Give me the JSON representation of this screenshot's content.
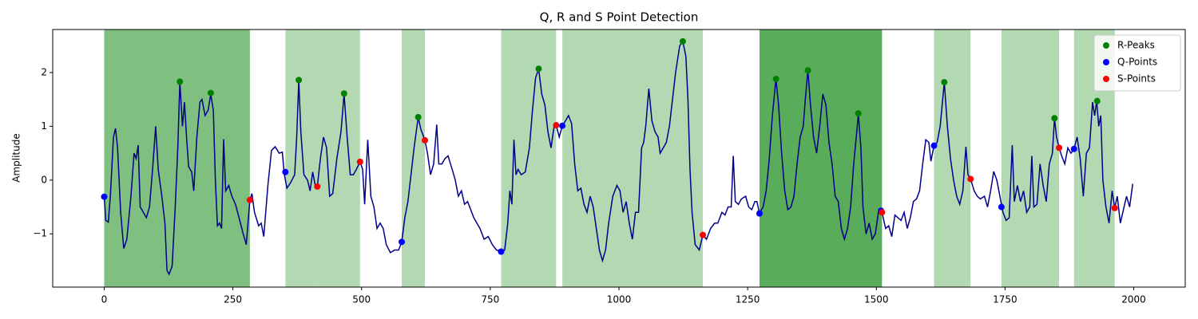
{
  "chart_data": {
    "type": "line",
    "title": "Q, R and S Point Detection",
    "ylabel": "Amplitude",
    "xlim": [
      -100,
      2100
    ],
    "ylim": [
      -1.99,
      2.8
    ],
    "xticks": [
      0,
      250,
      500,
      750,
      1000,
      1250,
      1500,
      1750,
      2000
    ],
    "yticks": [
      {
        "value": -1,
        "label": "−1"
      },
      0,
      1,
      2
    ],
    "legend": "upper right",
    "spans": [
      {
        "start": 0,
        "end": 283,
        "color": "#008000",
        "opacity": 0.5
      },
      {
        "start": 352,
        "end": 414,
        "color": "#008000",
        "opacity": 0.3
      },
      {
        "start": 414,
        "end": 497,
        "color": "#008000",
        "opacity": 0.3
      },
      {
        "start": 578,
        "end": 623,
        "color": "#008000",
        "opacity": 0.3
      },
      {
        "start": 771,
        "end": 878,
        "color": "#008000",
        "opacity": 0.3
      },
      {
        "start": 890,
        "end": 1163,
        "color": "#008000",
        "opacity": 0.3
      },
      {
        "start": 1273,
        "end": 1511,
        "color": "#008000",
        "opacity": 0.65
      },
      {
        "start": 1612,
        "end": 1683,
        "color": "#008000",
        "opacity": 0.3
      },
      {
        "start": 1743,
        "end": 1855,
        "color": "#008000",
        "opacity": 0.3
      },
      {
        "start": 1884,
        "end": 1963,
        "color": "#008000",
        "opacity": 0.3
      }
    ],
    "signal": {
      "color": "#00008b",
      "x": [
        0,
        3,
        8,
        12,
        18,
        22,
        26,
        32,
        38,
        44,
        52,
        58,
        62,
        66,
        70,
        76,
        82,
        88,
        94,
        100,
        105,
        112,
        118,
        122,
        126,
        132,
        138,
        143,
        147,
        152,
        156,
        160,
        164,
        170,
        174,
        180,
        186,
        190,
        196,
        202,
        207,
        212,
        216,
        220,
        224,
        228,
        232,
        236,
        242,
        248,
        255,
        262,
        270,
        276,
        283,
        287,
        292,
        300,
        305,
        310,
        318,
        325,
        332,
        340,
        346,
        350,
        355,
        362,
        370,
        374,
        378,
        382,
        388,
        395,
        400,
        405,
        410,
        414,
        420,
        426,
        432,
        438,
        444,
        452,
        460,
        466,
        472,
        478,
        484,
        490,
        497,
        502,
        506,
        512,
        518,
        524,
        530,
        536,
        542,
        548,
        556,
        564,
        572,
        578,
        584,
        590,
        596,
        602,
        610,
        615,
        623,
        628,
        634,
        640,
        646,
        650,
        656,
        662,
        668,
        676,
        682,
        688,
        694,
        700,
        706,
        712,
        718,
        724,
        730,
        738,
        746,
        754,
        762,
        771,
        778,
        784,
        788,
        792,
        796,
        800,
        804,
        810,
        818,
        826,
        832,
        838,
        844,
        850,
        856,
        862,
        868,
        874,
        878,
        884,
        890,
        896,
        902,
        908,
        914,
        920,
        926,
        932,
        938,
        944,
        950,
        956,
        962,
        968,
        974,
        980,
        988,
        996,
        1002,
        1008,
        1014,
        1020,
        1026,
        1032,
        1038,
        1044,
        1048,
        1052,
        1058,
        1064,
        1070,
        1076,
        1080,
        1086,
        1092,
        1098,
        1104,
        1110,
        1118,
        1124,
        1130,
        1134,
        1138,
        1142,
        1148,
        1156,
        1163,
        1170,
        1178,
        1186,
        1192,
        1200,
        1206,
        1212,
        1218,
        1222,
        1226,
        1232,
        1238,
        1246,
        1252,
        1258,
        1264,
        1268,
        1273,
        1280,
        1286,
        1292,
        1298,
        1305,
        1310,
        1316,
        1322,
        1328,
        1334,
        1340,
        1346,
        1352,
        1358,
        1362,
        1367,
        1372,
        1378,
        1384,
        1390,
        1396,
        1402,
        1408,
        1414,
        1420,
        1426,
        1432,
        1438,
        1444,
        1450,
        1456,
        1462,
        1465,
        1470,
        1474,
        1480,
        1486,
        1492,
        1498,
        1504,
        1511,
        1518,
        1524,
        1530,
        1536,
        1542,
        1548,
        1554,
        1560,
        1566,
        1572,
        1578,
        1584,
        1590,
        1596,
        1602,
        1606,
        1612,
        1618,
        1624,
        1632,
        1638,
        1644,
        1650,
        1656,
        1662,
        1668,
        1674,
        1678,
        1683,
        1690,
        1696,
        1702,
        1710,
        1716,
        1722,
        1728,
        1734,
        1740,
        1746,
        1752,
        1758,
        1764,
        1768,
        1774,
        1780,
        1786,
        1792,
        1798,
        1802,
        1806,
        1812,
        1818,
        1824,
        1830,
        1836,
        1842,
        1846,
        1850,
        1855,
        1860,
        1866,
        1872,
        1878,
        1884,
        1890,
        1896,
        1902,
        1908,
        1914,
        1920,
        1924,
        1928,
        1932,
        1936,
        1940,
        1946,
        1952,
        1958,
        1963,
        1968,
        1974,
        1980,
        1986,
        1992,
        1998
      ],
      "values": [
        -0.3,
        -0.75,
        -0.78,
        -0.3,
        0.8,
        0.96,
        0.6,
        -0.6,
        -1.27,
        -1.1,
        -0.3,
        0.5,
        0.4,
        0.65,
        -0.5,
        -0.6,
        -0.7,
        -0.5,
        0.2,
        1.0,
        0.2,
        -0.3,
        -0.8,
        -1.68,
        -1.75,
        -1.6,
        -0.5,
        0.6,
        1.83,
        1.0,
        1.45,
        0.8,
        0.25,
        0.15,
        -0.2,
        0.8,
        1.45,
        1.5,
        1.2,
        1.3,
        1.6,
        1.3,
        0.0,
        -0.85,
        -0.8,
        -0.9,
        0.76,
        -0.2,
        -0.1,
        -0.3,
        -0.45,
        -0.7,
        -1.0,
        -1.2,
        -0.37,
        -0.25,
        -0.6,
        -0.85,
        -0.8,
        -1.05,
        -0.1,
        0.55,
        0.62,
        0.5,
        0.52,
        0.1,
        -0.15,
        -0.05,
        0.1,
        0.8,
        1.86,
        0.9,
        0.1,
        0.0,
        -0.2,
        0.15,
        -0.1,
        -0.12,
        0.4,
        0.8,
        0.6,
        -0.3,
        -0.25,
        0.4,
        0.9,
        1.6,
        0.8,
        0.1,
        0.1,
        0.2,
        0.34,
        0.2,
        -0.45,
        0.75,
        -0.3,
        -0.5,
        -0.9,
        -0.8,
        -0.9,
        -1.2,
        -1.35,
        -1.3,
        -1.3,
        -1.15,
        -0.7,
        -0.4,
        0.1,
        0.6,
        1.17,
        0.95,
        0.74,
        0.5,
        0.1,
        0.3,
        1.03,
        0.3,
        0.3,
        0.4,
        0.45,
        0.2,
        0.0,
        -0.3,
        -0.2,
        -0.45,
        -0.4,
        -0.55,
        -0.7,
        -0.8,
        -0.9,
        -1.1,
        -1.05,
        -1.2,
        -1.3,
        -1.33,
        -1.3,
        -0.8,
        -0.2,
        -0.45,
        0.75,
        0.1,
        0.2,
        0.1,
        0.15,
        0.6,
        1.3,
        1.9,
        2.07,
        1.6,
        1.4,
        0.9,
        0.6,
        1.0,
        1.02,
        0.8,
        1.01,
        1.1,
        1.2,
        1.05,
        0.3,
        -0.2,
        -0.15,
        -0.45,
        -0.6,
        -0.3,
        -0.5,
        -0.9,
        -1.3,
        -1.5,
        -1.3,
        -0.8,
        -0.3,
        -0.1,
        -0.2,
        -0.6,
        -0.4,
        -0.8,
        -1.1,
        -0.6,
        -0.6,
        0.6,
        0.7,
        1.0,
        1.7,
        1.1,
        0.9,
        0.8,
        0.5,
        0.6,
        0.7,
        1.0,
        1.5,
        2.0,
        2.5,
        2.58,
        2.3,
        1.5,
        0.2,
        -0.6,
        -1.2,
        -1.3,
        -1.02,
        -1.1,
        -0.9,
        -0.8,
        -0.8,
        -0.6,
        -0.65,
        -0.5,
        -0.5,
        0.45,
        -0.4,
        -0.45,
        -0.35,
        -0.3,
        -0.5,
        -0.55,
        -0.4,
        -0.4,
        -0.62,
        -0.5,
        -0.2,
        0.4,
        1.2,
        1.88,
        1.4,
        0.5,
        -0.2,
        -0.55,
        -0.5,
        -0.3,
        0.3,
        0.8,
        1.0,
        1.5,
        2.04,
        1.4,
        0.8,
        0.5,
        1.0,
        1.6,
        1.4,
        0.7,
        0.3,
        -0.3,
        -0.4,
        -0.9,
        -1.1,
        -0.9,
        -0.5,
        0.3,
        0.9,
        1.24,
        0.6,
        -0.5,
        -1.0,
        -0.8,
        -1.1,
        -1.0,
        -0.6,
        -0.6,
        -0.9,
        -0.85,
        -1.05,
        -0.65,
        -0.7,
        -0.75,
        -0.6,
        -0.9,
        -0.7,
        -0.4,
        -0.35,
        -0.2,
        0.3,
        0.75,
        0.7,
        0.35,
        0.64,
        0.7,
        1.0,
        1.82,
        1.0,
        0.4,
        0.0,
        -0.3,
        -0.45,
        -0.2,
        0.62,
        0.1,
        0.02,
        -0.2,
        -0.3,
        -0.35,
        -0.3,
        -0.5,
        -0.2,
        0.16,
        0.0,
        -0.3,
        -0.6,
        -0.75,
        -0.7,
        0.65,
        -0.4,
        -0.1,
        -0.4,
        -0.2,
        -0.6,
        -0.5,
        0.45,
        -0.5,
        -0.45,
        0.3,
        -0.1,
        -0.4,
        0.3,
        0.5,
        1.15,
        0.8,
        0.6,
        0.45,
        0.3,
        0.6,
        0.5,
        0.58,
        0.8,
        0.4,
        -0.3,
        0.5,
        0.6,
        1.45,
        1.2,
        1.47,
        1.0,
        1.2,
        0.0,
        -0.5,
        -0.8,
        -0.2,
        -0.52,
        -0.3,
        -0.8,
        -0.55,
        -0.3,
        -0.5,
        -0.07
      ]
    },
    "series": [
      {
        "name": "R-Peaks",
        "color": "#008000",
        "x": [
          147,
          207,
          378,
          466,
          610,
          844,
          1124,
          1305,
          1367,
          1465,
          1632,
          1846,
          1929
        ],
        "values": [
          1.83,
          1.62,
          1.86,
          1.61,
          1.17,
          2.07,
          2.58,
          1.88,
          2.04,
          1.24,
          1.82,
          1.15,
          1.47
        ]
      },
      {
        "name": "Q-Points",
        "color": "#0000ff",
        "x": [
          0,
          352,
          578,
          771,
          890,
          1273,
          1509,
          1612,
          1743,
          1884
        ],
        "values": [
          -0.31,
          0.15,
          -1.15,
          -1.33,
          1.01,
          -0.62,
          -0.57,
          0.64,
          -0.5,
          0.58
        ]
      },
      {
        "name": "S-Points",
        "color": "#ff0000",
        "x": [
          283,
          414,
          497,
          623,
          878,
          1163,
          1511,
          1683,
          1855,
          1963
        ],
        "values": [
          -0.37,
          -0.12,
          0.34,
          0.74,
          1.02,
          -1.02,
          -0.6,
          0.02,
          0.6,
          -0.52
        ]
      }
    ]
  }
}
